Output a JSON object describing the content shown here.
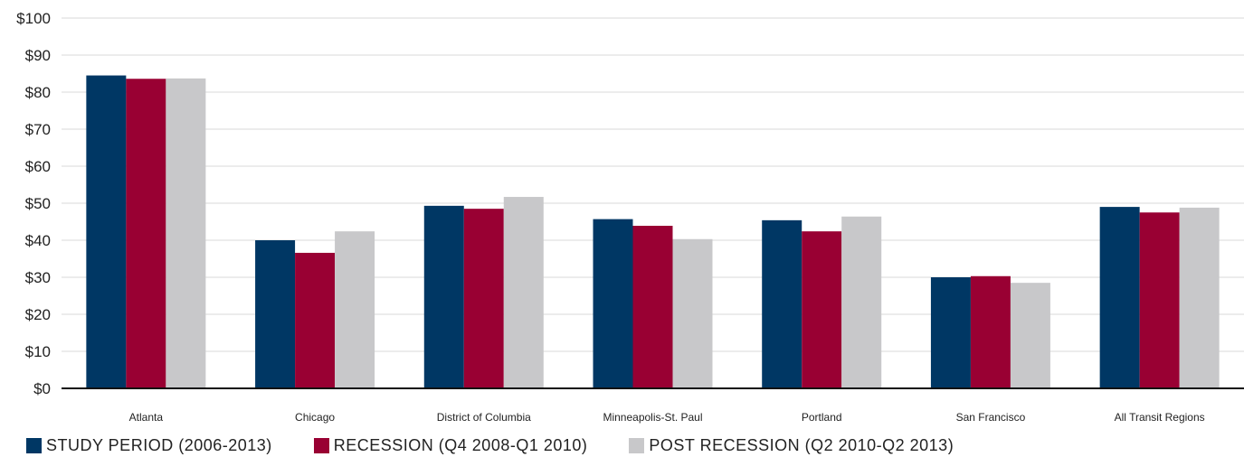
{
  "chart_data": {
    "type": "bar",
    "categories": [
      "Atlanta",
      "Chicago",
      "District of Columbia",
      "Minneapolis-St. Paul",
      "Portland",
      "San Francisco",
      "All Transit Regions"
    ],
    "series": [
      {
        "name": "STUDY PERIOD (2006-2013)",
        "color": "#003764",
        "values": [
          84.5,
          40,
          49.3,
          45.7,
          45.4,
          30,
          49
        ]
      },
      {
        "name": "RECESSION (Q4 2008-Q1 2010)",
        "color": "#990033",
        "values": [
          83.6,
          36.6,
          48.5,
          43.9,
          42.4,
          30.3,
          47.5
        ]
      },
      {
        "name": "POST RECESSION (Q2 2010-Q2 2013)",
        "color": "#c8c8ca",
        "values": [
          83.7,
          42.4,
          51.7,
          40.3,
          46.4,
          28.5,
          48.8
        ]
      }
    ],
    "ylim": [
      0,
      100
    ],
    "yticks": [
      "$0",
      "$10",
      "$20",
      "$30",
      "$40",
      "$50",
      "$60",
      "$70",
      "$80",
      "$90",
      "$100"
    ],
    "grid": true,
    "legend_position": "bottom-left"
  }
}
